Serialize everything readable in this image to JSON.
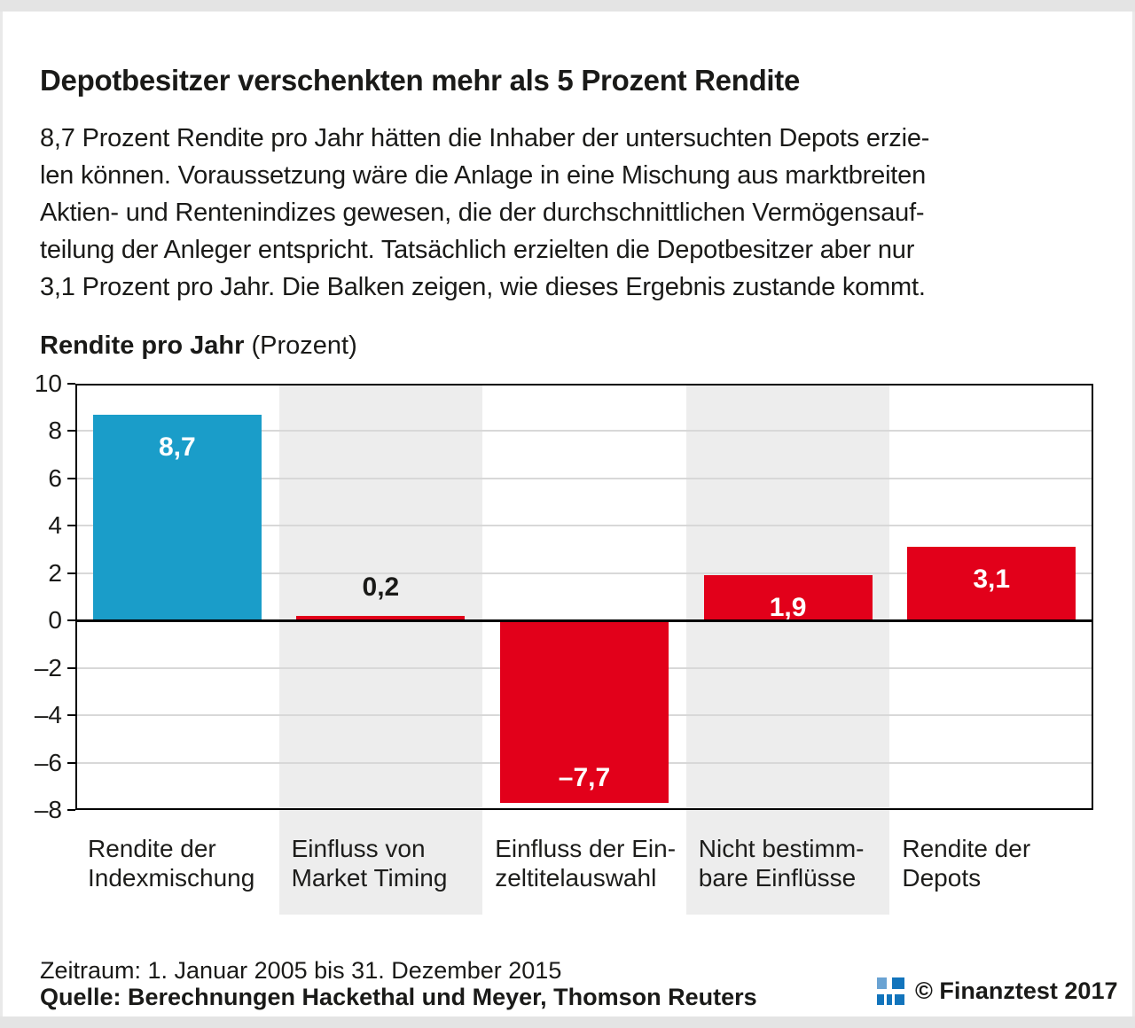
{
  "frame": {
    "strip_color": "#e4e4e4"
  },
  "header": {
    "title": "Depotbesitzer verschenkten mehr als 5 Prozent Rendite"
  },
  "intro": {
    "lines": [
      "8,7 Prozent Rendite pro Jahr hätten die Inhaber der untersuchten Depots erzie-",
      "len können. Voraussetzung wäre die Anlage in eine Mischung aus marktbreiten",
      "Aktien- und Rentenindizes gewesen, die der durchschnittlichen Vermögensauf-",
      "teilung der Anleger entspricht. Tatsächlich erzielten die Depotbesitzer aber nur",
      "3,1 Prozent pro Jahr. Die Balken zeigen, wie dieses Ergebnis zustande kommt."
    ]
  },
  "chart_heading": {
    "bold": "Rendite pro Jahr",
    "unit": "(Prozent)"
  },
  "chart_data": {
    "type": "bar",
    "title": "Rendite pro Jahr (Prozent)",
    "categories": [
      [
        "Rendite der",
        "Indexmischung"
      ],
      [
        "Einfluss von",
        "Market Timing"
      ],
      [
        "Einfluss der Ein-",
        "zeltitelauswahl"
      ],
      [
        "Nicht bestimm-",
        "bare Einflüsse"
      ],
      [
        "Rendite der",
        "Depots"
      ]
    ],
    "values": [
      8.7,
      0.2,
      -7.7,
      1.9,
      3.1
    ],
    "bar_labels": [
      "8,7",
      "0,2",
      "–7,7",
      "1,9",
      "3,1"
    ],
    "bar_colors": [
      "#1a9dc9",
      "#e2001a",
      "#e2001a",
      "#e2001a",
      "#e2001a"
    ],
    "label_colors_inside": "#ffffff",
    "label_colors_outside": "#1a1a18",
    "striped_columns": [
      1,
      3
    ],
    "stripe_color": "#ededed",
    "ylim": [
      -8,
      10
    ],
    "yticks": [
      10,
      8,
      6,
      4,
      2,
      0,
      -2,
      -4,
      -6,
      -8
    ],
    "ytick_labels": [
      "10",
      "8",
      "6",
      "4",
      "2",
      "0",
      "–2",
      "–4",
      "–6",
      "–8"
    ],
    "grid": true,
    "legend": "none"
  },
  "footer": {
    "zeitraum": "Zeitraum: 1. Januar 2005 bis 31. Dezember 2015",
    "quelle": "Quelle: Berechnungen Hackethal und Meyer, Thomson Reuters",
    "copyright": "© Finanztest 2017"
  },
  "logo": {
    "blue": "#1274bc",
    "light_blue": "#6aa3d3"
  }
}
